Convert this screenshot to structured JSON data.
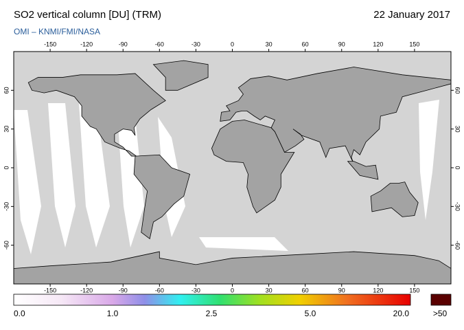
{
  "header": {
    "title": "SO2 vertical column [DU] (TRM)",
    "date": "22 January 2017",
    "source": "OMI – KNMI/FMI/NASA"
  },
  "map": {
    "lon_ticks": [
      -150,
      -120,
      -90,
      -60,
      -30,
      0,
      30,
      60,
      90,
      120,
      150
    ],
    "lat_ticks": [
      60,
      30,
      0,
      -30,
      -60
    ]
  },
  "colorbar": {
    "labels": [
      "0.0",
      "1.0",
      "2.5",
      "5.0",
      "20.0"
    ],
    "overflow": ">50"
  }
}
